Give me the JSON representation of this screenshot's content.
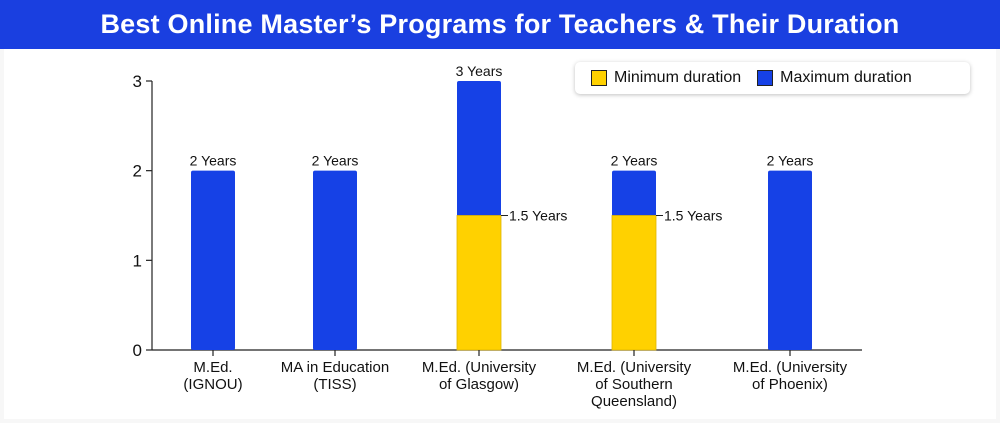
{
  "header": {
    "title": "Best Online Master’s Programs for Teachers & Their Duration"
  },
  "colors": {
    "header_bg": "#1a3fe0",
    "minimum": "#ffd100",
    "maximum": "#1641e6"
  },
  "legend": {
    "placement": "top-right",
    "items": [
      {
        "label": "Minimum duration",
        "color": "#ffd100"
      },
      {
        "label": "Maximum duration",
        "color": "#1641e6"
      }
    ]
  },
  "chart_data": {
    "type": "bar",
    "stacked_overlay": true,
    "title": "Best Online Master’s Programs for Teachers & Their Duration",
    "xlabel": "",
    "ylabel": "",
    "ylim": [
      0,
      3
    ],
    "yticks": [
      "0",
      "1",
      "2",
      "3"
    ],
    "grid": false,
    "categories": [
      [
        "M.Ed.",
        "(IGNOU)"
      ],
      [
        "MA in Education",
        "(TISS)"
      ],
      [
        "M.Ed. (University",
        "of Glasgow)"
      ],
      [
        "M.Ed. (University",
        "of Southern",
        "Queensland)"
      ],
      [
        "M.Ed. (University",
        "of Phoenix)"
      ]
    ],
    "series": [
      {
        "name": "Minimum duration",
        "values": [
          null,
          null,
          1.5,
          1.5,
          null
        ]
      },
      {
        "name": "Maximum duration",
        "values": [
          2,
          2,
          3,
          2,
          2
        ]
      }
    ],
    "top_labels": [
      "2 Years",
      "2 Years",
      "3 Years",
      "2 Years",
      "2 Years"
    ],
    "min_labels": [
      null,
      null,
      "1.5 Years",
      "1.5 Years",
      null
    ]
  }
}
